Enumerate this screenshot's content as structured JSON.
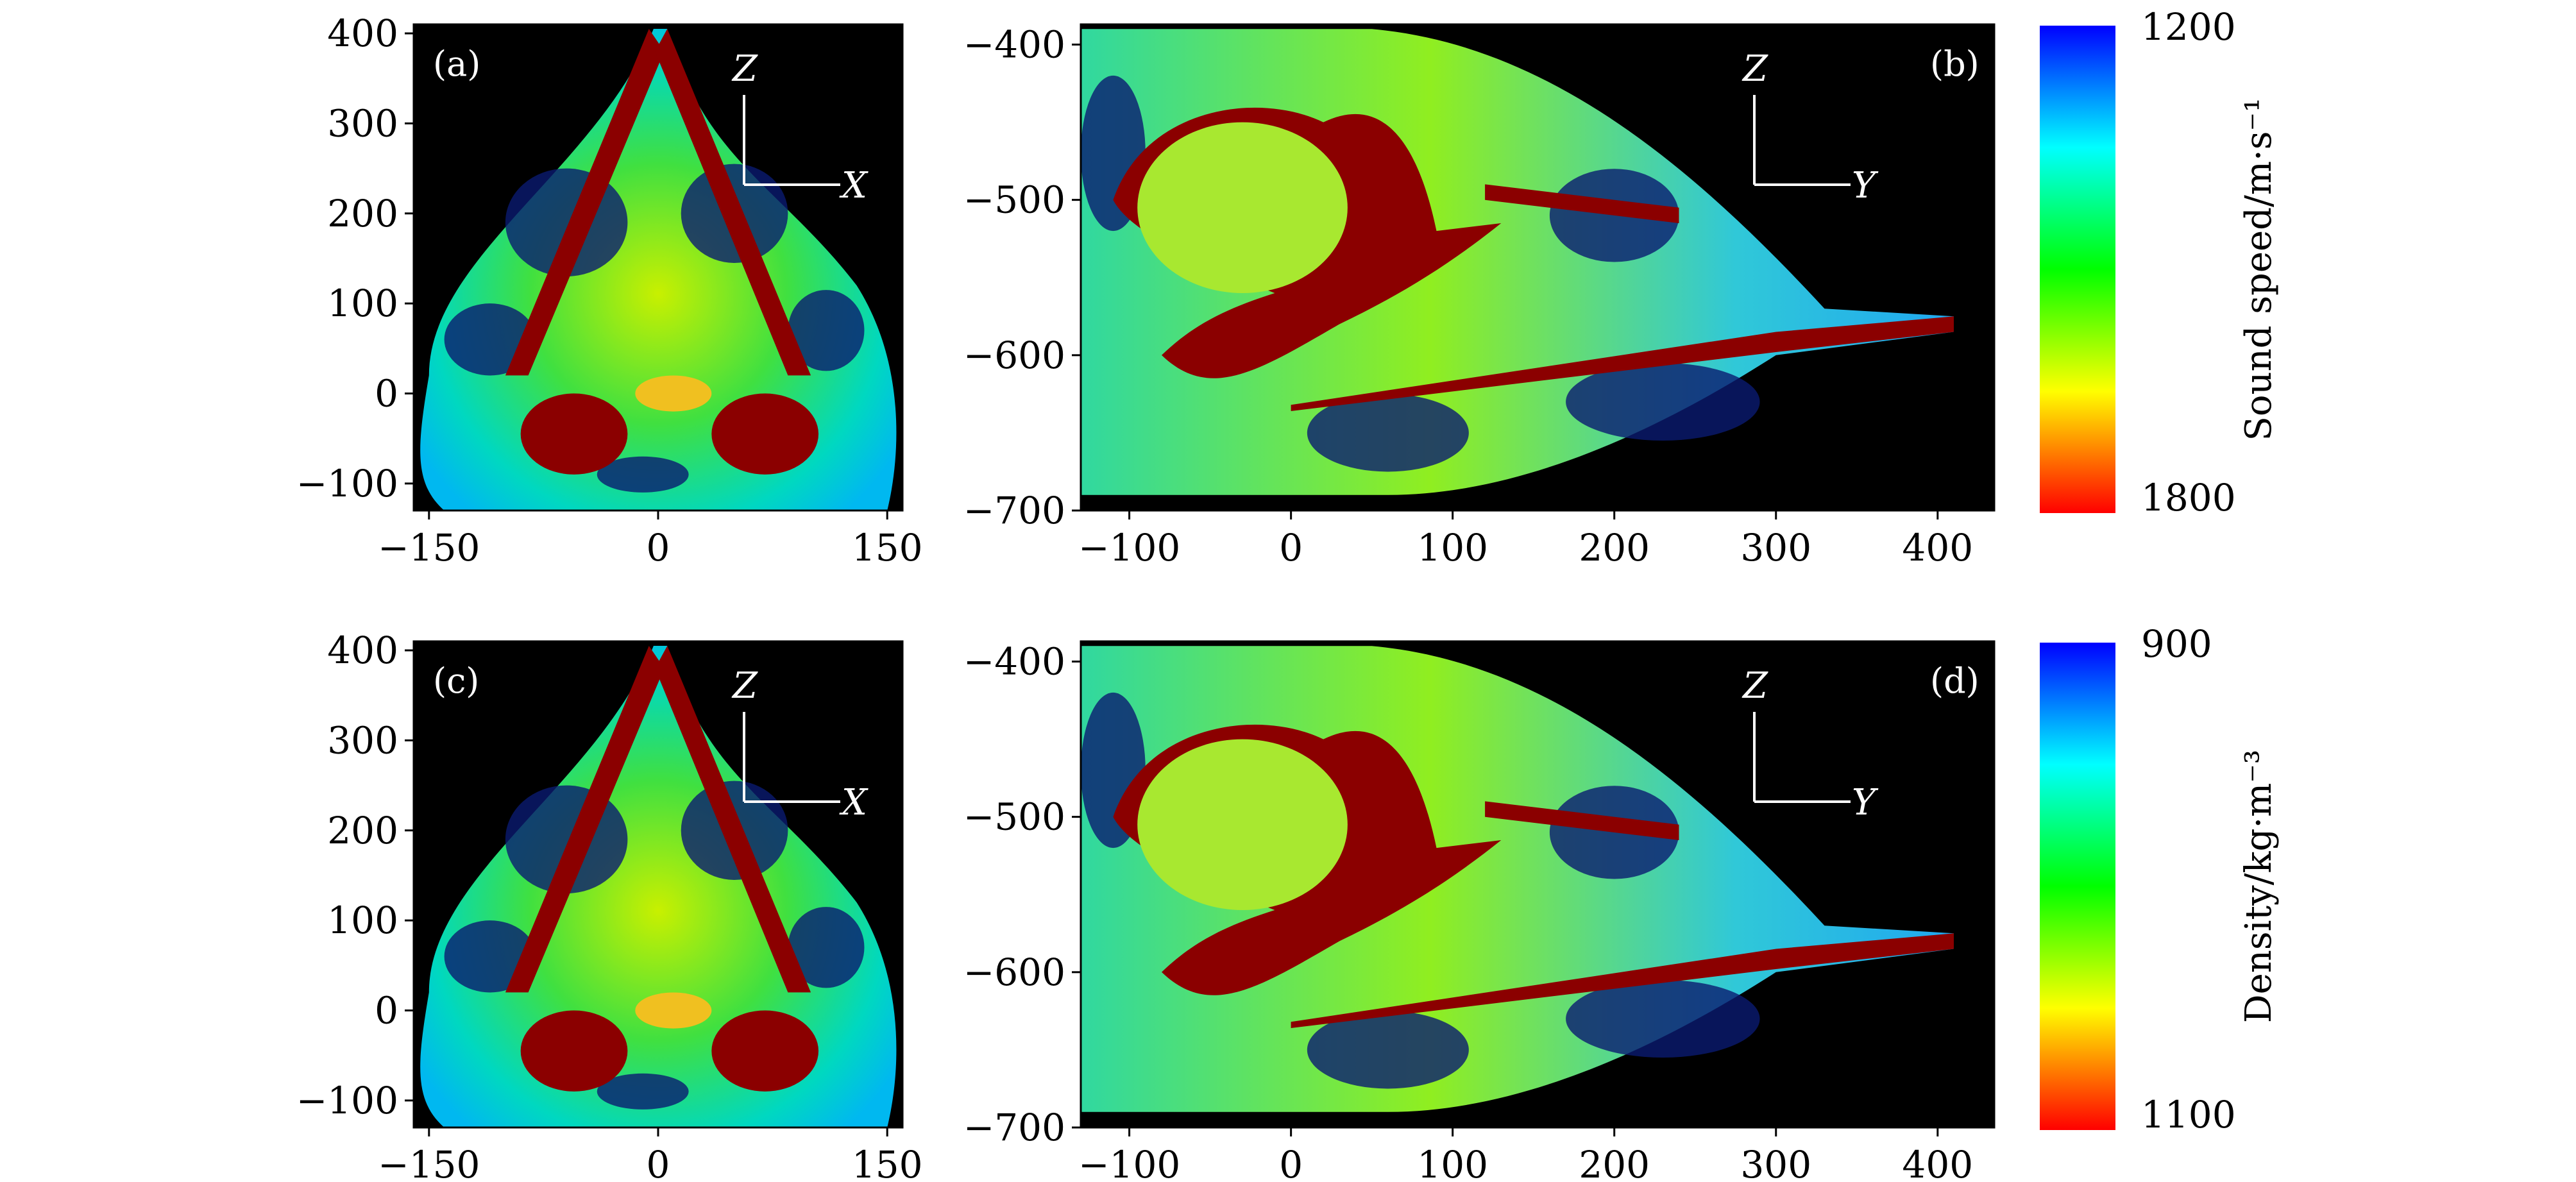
{
  "chart_data": [
    {
      "type": "heatmap",
      "panel": "(a)",
      "quantity": "sound speed",
      "view_axes": [
        "X",
        "Z"
      ],
      "xlim": [
        -160,
        160
      ],
      "ylim": [
        -130,
        410
      ],
      "x_ticks": [
        {
          "value": -150,
          "label": "−150"
        },
        {
          "value": 0,
          "label": "0"
        },
        {
          "value": 150,
          "label": "150"
        }
      ],
      "y_ticks": [
        {
          "value": 400,
          "label": "400"
        },
        {
          "value": 300,
          "label": "300"
        },
        {
          "value": 200,
          "label": "200"
        },
        {
          "value": 100,
          "label": "100"
        },
        {
          "value": 0,
          "label": "0"
        },
        {
          "value": -100,
          "label": "−100"
        }
      ]
    },
    {
      "type": "heatmap",
      "panel": "(b)",
      "quantity": "sound speed",
      "view_axes": [
        "Y",
        "Z"
      ],
      "xlim": [
        -130,
        435
      ],
      "ylim": [
        -700,
        -387
      ],
      "x_ticks": [
        {
          "value": -100,
          "label": "−100"
        },
        {
          "value": 0,
          "label": "0"
        },
        {
          "value": 100,
          "label": "100"
        },
        {
          "value": 200,
          "label": "200"
        },
        {
          "value": 300,
          "label": "300"
        },
        {
          "value": 400,
          "label": "400"
        }
      ],
      "y_ticks": [
        {
          "value": -400,
          "label": "−400"
        },
        {
          "value": -500,
          "label": "−500"
        },
        {
          "value": -600,
          "label": "−600"
        },
        {
          "value": -700,
          "label": "−700"
        }
      ]
    },
    {
      "type": "heatmap",
      "panel": "(c)",
      "quantity": "density",
      "view_axes": [
        "X",
        "Z"
      ],
      "xlim": [
        -160,
        160
      ],
      "ylim": [
        -130,
        410
      ],
      "x_ticks": [
        {
          "value": -150,
          "label": "−150"
        },
        {
          "value": 0,
          "label": "0"
        },
        {
          "value": 150,
          "label": "150"
        }
      ],
      "y_ticks": [
        {
          "value": 400,
          "label": "400"
        },
        {
          "value": 300,
          "label": "300"
        },
        {
          "value": 200,
          "label": "200"
        },
        {
          "value": 100,
          "label": "100"
        },
        {
          "value": 0,
          "label": "0"
        },
        {
          "value": -100,
          "label": "−100"
        }
      ]
    },
    {
      "type": "heatmap",
      "panel": "(d)",
      "quantity": "density",
      "view_axes": [
        "Y",
        "Z"
      ],
      "xlim": [
        -130,
        435
      ],
      "ylim": [
        -700,
        -387
      ],
      "x_ticks": [
        {
          "value": -100,
          "label": "−100"
        },
        {
          "value": 0,
          "label": "0"
        },
        {
          "value": 100,
          "label": "100"
        },
        {
          "value": 200,
          "label": "200"
        },
        {
          "value": 300,
          "label": "300"
        },
        {
          "value": 400,
          "label": "400"
        }
      ],
      "y_ticks": [
        {
          "value": -400,
          "label": "−400"
        },
        {
          "value": -500,
          "label": "−500"
        },
        {
          "value": -600,
          "label": "−600"
        },
        {
          "value": -700,
          "label": "−700"
        }
      ]
    }
  ],
  "colorbars": [
    {
      "label": "Sound speed/m·s⁻¹",
      "top_value": "1200",
      "bottom_value": "1800",
      "range": [
        1200,
        1800
      ]
    },
    {
      "label": "Density/kg·m⁻³",
      "top_value": "900",
      "bottom_value": "1100",
      "range": [
        900,
        1100
      ]
    }
  ],
  "colormap_stops": [
    "#0000ff",
    "#00ffff",
    "#00ff00",
    "#ffff00",
    "#ff0000"
  ],
  "colors": {
    "background": "#000000",
    "bone": "#8b0000",
    "soft_tissue": "#00ff00",
    "fat": "#00ffff"
  }
}
